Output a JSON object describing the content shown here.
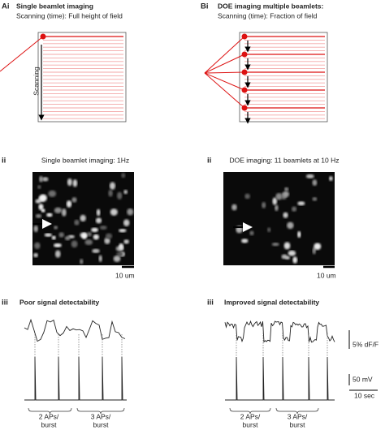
{
  "panel_a": {
    "label": "Ai",
    "title": "Single beamlet imaging",
    "subtitle": "Scanning (time): Full height of field",
    "arrow_label": "Scanning"
  },
  "panel_b": {
    "label": "Bi",
    "title": "DOE imaging multiple beamlets:",
    "subtitle": "Scanning (time): Fraction of field"
  },
  "panel_a2": {
    "label": "ii",
    "title": "Single beamlet imaging: 1Hz",
    "scale_label": "10 um"
  },
  "panel_b2": {
    "label": "ii",
    "title": "DOE imaging: 11 beamlets at 10 Hz",
    "scale_label": "10 um"
  },
  "panel_a3": {
    "label": "iii",
    "title": "Poor signal detectability",
    "bursts": [
      [
        "2 APs/",
        "burst"
      ],
      [
        "3 APs/",
        "burst"
      ]
    ]
  },
  "panel_b3": {
    "label": "iii",
    "title": "Improved signal detectability",
    "bursts": [
      [
        "2 APs/",
        "burst"
      ],
      [
        "3 APs/",
        "burst"
      ]
    ],
    "scale_dff": "5% dF/F",
    "scale_mv": "50 mV",
    "scale_time": "10 sec"
  }
}
